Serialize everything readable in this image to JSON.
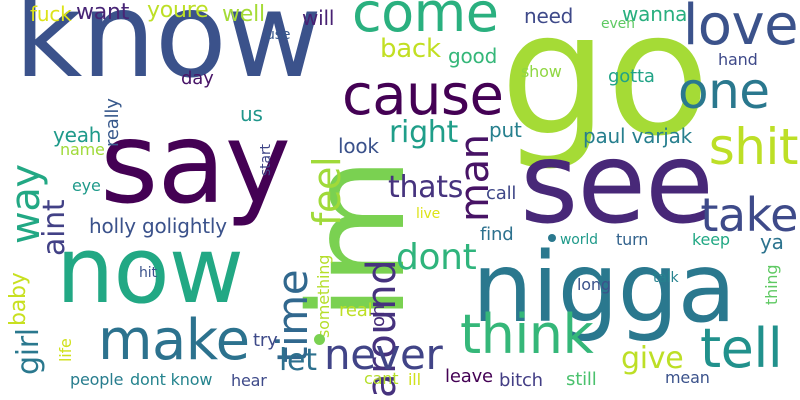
{
  "words": [
    {
      "text": "know",
      "color": "#3b528b"
    },
    {
      "text": "say",
      "color": "#440154"
    },
    {
      "text": "go",
      "color": "#a5db36"
    },
    {
      "text": "im",
      "color": "#7ad151"
    },
    {
      "text": "see",
      "color": "#482878"
    },
    {
      "text": "now",
      "color": "#22a884"
    },
    {
      "text": "nigga",
      "color": "#2a788e"
    },
    {
      "text": "come",
      "color": "#2ab07f"
    },
    {
      "text": "cause",
      "color": "#440154"
    },
    {
      "text": "love",
      "color": "#3b528b"
    },
    {
      "text": "one",
      "color": "#2a788e"
    },
    {
      "text": "shit",
      "color": "#bddf26"
    },
    {
      "text": "make",
      "color": "#2c728e"
    },
    {
      "text": "think",
      "color": "#35b779"
    },
    {
      "text": "tell",
      "color": "#21918c"
    },
    {
      "text": "take",
      "color": "#3e4a89"
    },
    {
      "text": "way",
      "color": "#22a884"
    },
    {
      "text": "time",
      "color": "#31688e"
    },
    {
      "text": "feel",
      "color": "#a0da39"
    },
    {
      "text": "man",
      "color": "#471365"
    },
    {
      "text": "around",
      "color": "#46327e"
    },
    {
      "text": "never",
      "color": "#414487"
    },
    {
      "text": "dont",
      "color": "#2fb47c"
    },
    {
      "text": "aint",
      "color": "#424186"
    },
    {
      "text": "thats",
      "color": "#46337e"
    },
    {
      "text": "right",
      "color": "#1f9e89"
    },
    {
      "text": "back",
      "color": "#c2df23"
    },
    {
      "text": "girl",
      "color": "#2a788e"
    },
    {
      "text": "baby",
      "color": "#c8e020"
    },
    {
      "text": "let",
      "color": "#2d708e"
    },
    {
      "text": "give",
      "color": "#bddf26"
    },
    {
      "text": "fuck",
      "color": "#dde318"
    },
    {
      "text": "want",
      "color": "#482576"
    },
    {
      "text": "youre",
      "color": "#bddf26"
    },
    {
      "text": "well",
      "color": "#a5db36"
    },
    {
      "text": "will",
      "color": "#482173"
    },
    {
      "text": "need",
      "color": "#3e4989"
    },
    {
      "text": "wanna",
      "color": "#29af7f"
    },
    {
      "text": "even",
      "color": "#5ec962"
    },
    {
      "text": "use",
      "color": "#38588c"
    },
    {
      "text": "good",
      "color": "#35b779"
    },
    {
      "text": "day",
      "color": "#481467"
    },
    {
      "text": "really",
      "color": "#38598c"
    },
    {
      "text": "us",
      "color": "#1f968b"
    },
    {
      "text": "show",
      "color": "#90d743"
    },
    {
      "text": "gotta",
      "color": "#20a386"
    },
    {
      "text": "hand",
      "color": "#3e4989"
    },
    {
      "text": "yeah",
      "color": "#1f9a8a"
    },
    {
      "text": "name",
      "color": "#a0da39"
    },
    {
      "text": "start",
      "color": "#404688"
    },
    {
      "text": "look",
      "color": "#3b528b"
    },
    {
      "text": "put",
      "color": "#27808e"
    },
    {
      "text": "paul varjak",
      "color": "#277f8e"
    },
    {
      "text": "eye",
      "color": "#1f9a8a"
    },
    {
      "text": "call",
      "color": "#3f4788"
    },
    {
      "text": "holly golightly",
      "color": "#3b528b"
    },
    {
      "text": "live",
      "color": "#dde318"
    },
    {
      "text": "find",
      "color": "#2d718e"
    },
    {
      "text": "world",
      "color": "#1f9a8a"
    },
    {
      "text": "turn",
      "color": "#33638d"
    },
    {
      "text": "keep",
      "color": "#22a884"
    },
    {
      "text": "ya",
      "color": "#2c738e"
    },
    {
      "text": "something",
      "color": "#b5de2b"
    },
    {
      "text": "long",
      "color": "#3b528b"
    },
    {
      "text": "talk",
      "color": "#26828e"
    },
    {
      "text": "thing",
      "color": "#5ec962"
    },
    {
      "text": "hit",
      "color": "#3b528b"
    },
    {
      "text": "real",
      "color": "#bddf26"
    },
    {
      "text": "oh",
      "color": "#472c7a"
    },
    {
      "text": "try",
      "color": "#3e4a89"
    },
    {
      "text": "life",
      "color": "#d0e11c"
    },
    {
      "text": "people",
      "color": "#287d8e"
    },
    {
      "text": "dont know",
      "color": "#25848e"
    },
    {
      "text": "hear",
      "color": "#3e4a89"
    },
    {
      "text": "cant",
      "color": "#b5de2b"
    },
    {
      "text": "ill",
      "color": "#d0e11c"
    },
    {
      "text": "leave",
      "color": "#440154"
    },
    {
      "text": "bitch",
      "color": "#433e85"
    },
    {
      "text": "still",
      "color": "#4ac16d"
    },
    {
      "text": "mean",
      "color": "#3b528b"
    }
  ],
  "dots": [
    {
      "color": "#7ad151"
    },
    {
      "color": "#2a788e"
    }
  ]
}
